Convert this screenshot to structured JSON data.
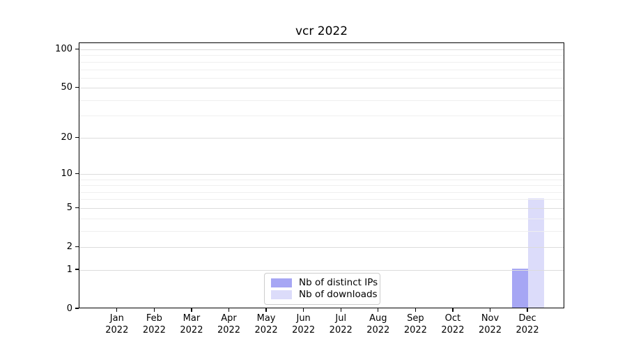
{
  "figure": {
    "background": "#ffffff"
  },
  "chart_data": {
    "type": "bar",
    "title": "vcr 2022",
    "scale": "log1p",
    "categories": [
      "Jan 2022",
      "Feb 2022",
      "Mar 2022",
      "Apr 2022",
      "May 2022",
      "Jun 2022",
      "Jul 2022",
      "Aug 2022",
      "Sep 2022",
      "Oct 2022",
      "Nov 2022",
      "Dec 2022"
    ],
    "series": [
      {
        "name": "Nb of distinct IPs",
        "color": "#a6a6f4",
        "values": [
          0,
          0,
          0,
          0,
          0,
          0,
          0,
          0,
          0,
          0,
          0,
          1
        ]
      },
      {
        "name": "Nb of downloads",
        "color": "#dcdcfa",
        "values": [
          0,
          0,
          0,
          0,
          0,
          0,
          0,
          0,
          0,
          0,
          0,
          6
        ]
      }
    ],
    "yticks_major": [
      0,
      1,
      2,
      5,
      10,
      20,
      50,
      100
    ],
    "yticks_minor": [
      3,
      4,
      6,
      7,
      8,
      9,
      30,
      40,
      60,
      70,
      80,
      90
    ],
    "ylim": [
      0,
      112
    ],
    "xlabel": "",
    "ylabel": "",
    "grid": "both",
    "grid_major_color": "#dcdcdc",
    "grid_minor_color": "#efefef",
    "axis_color": "#000000",
    "legend_position": "lower center",
    "legend_border_color": "#cccccc"
  }
}
